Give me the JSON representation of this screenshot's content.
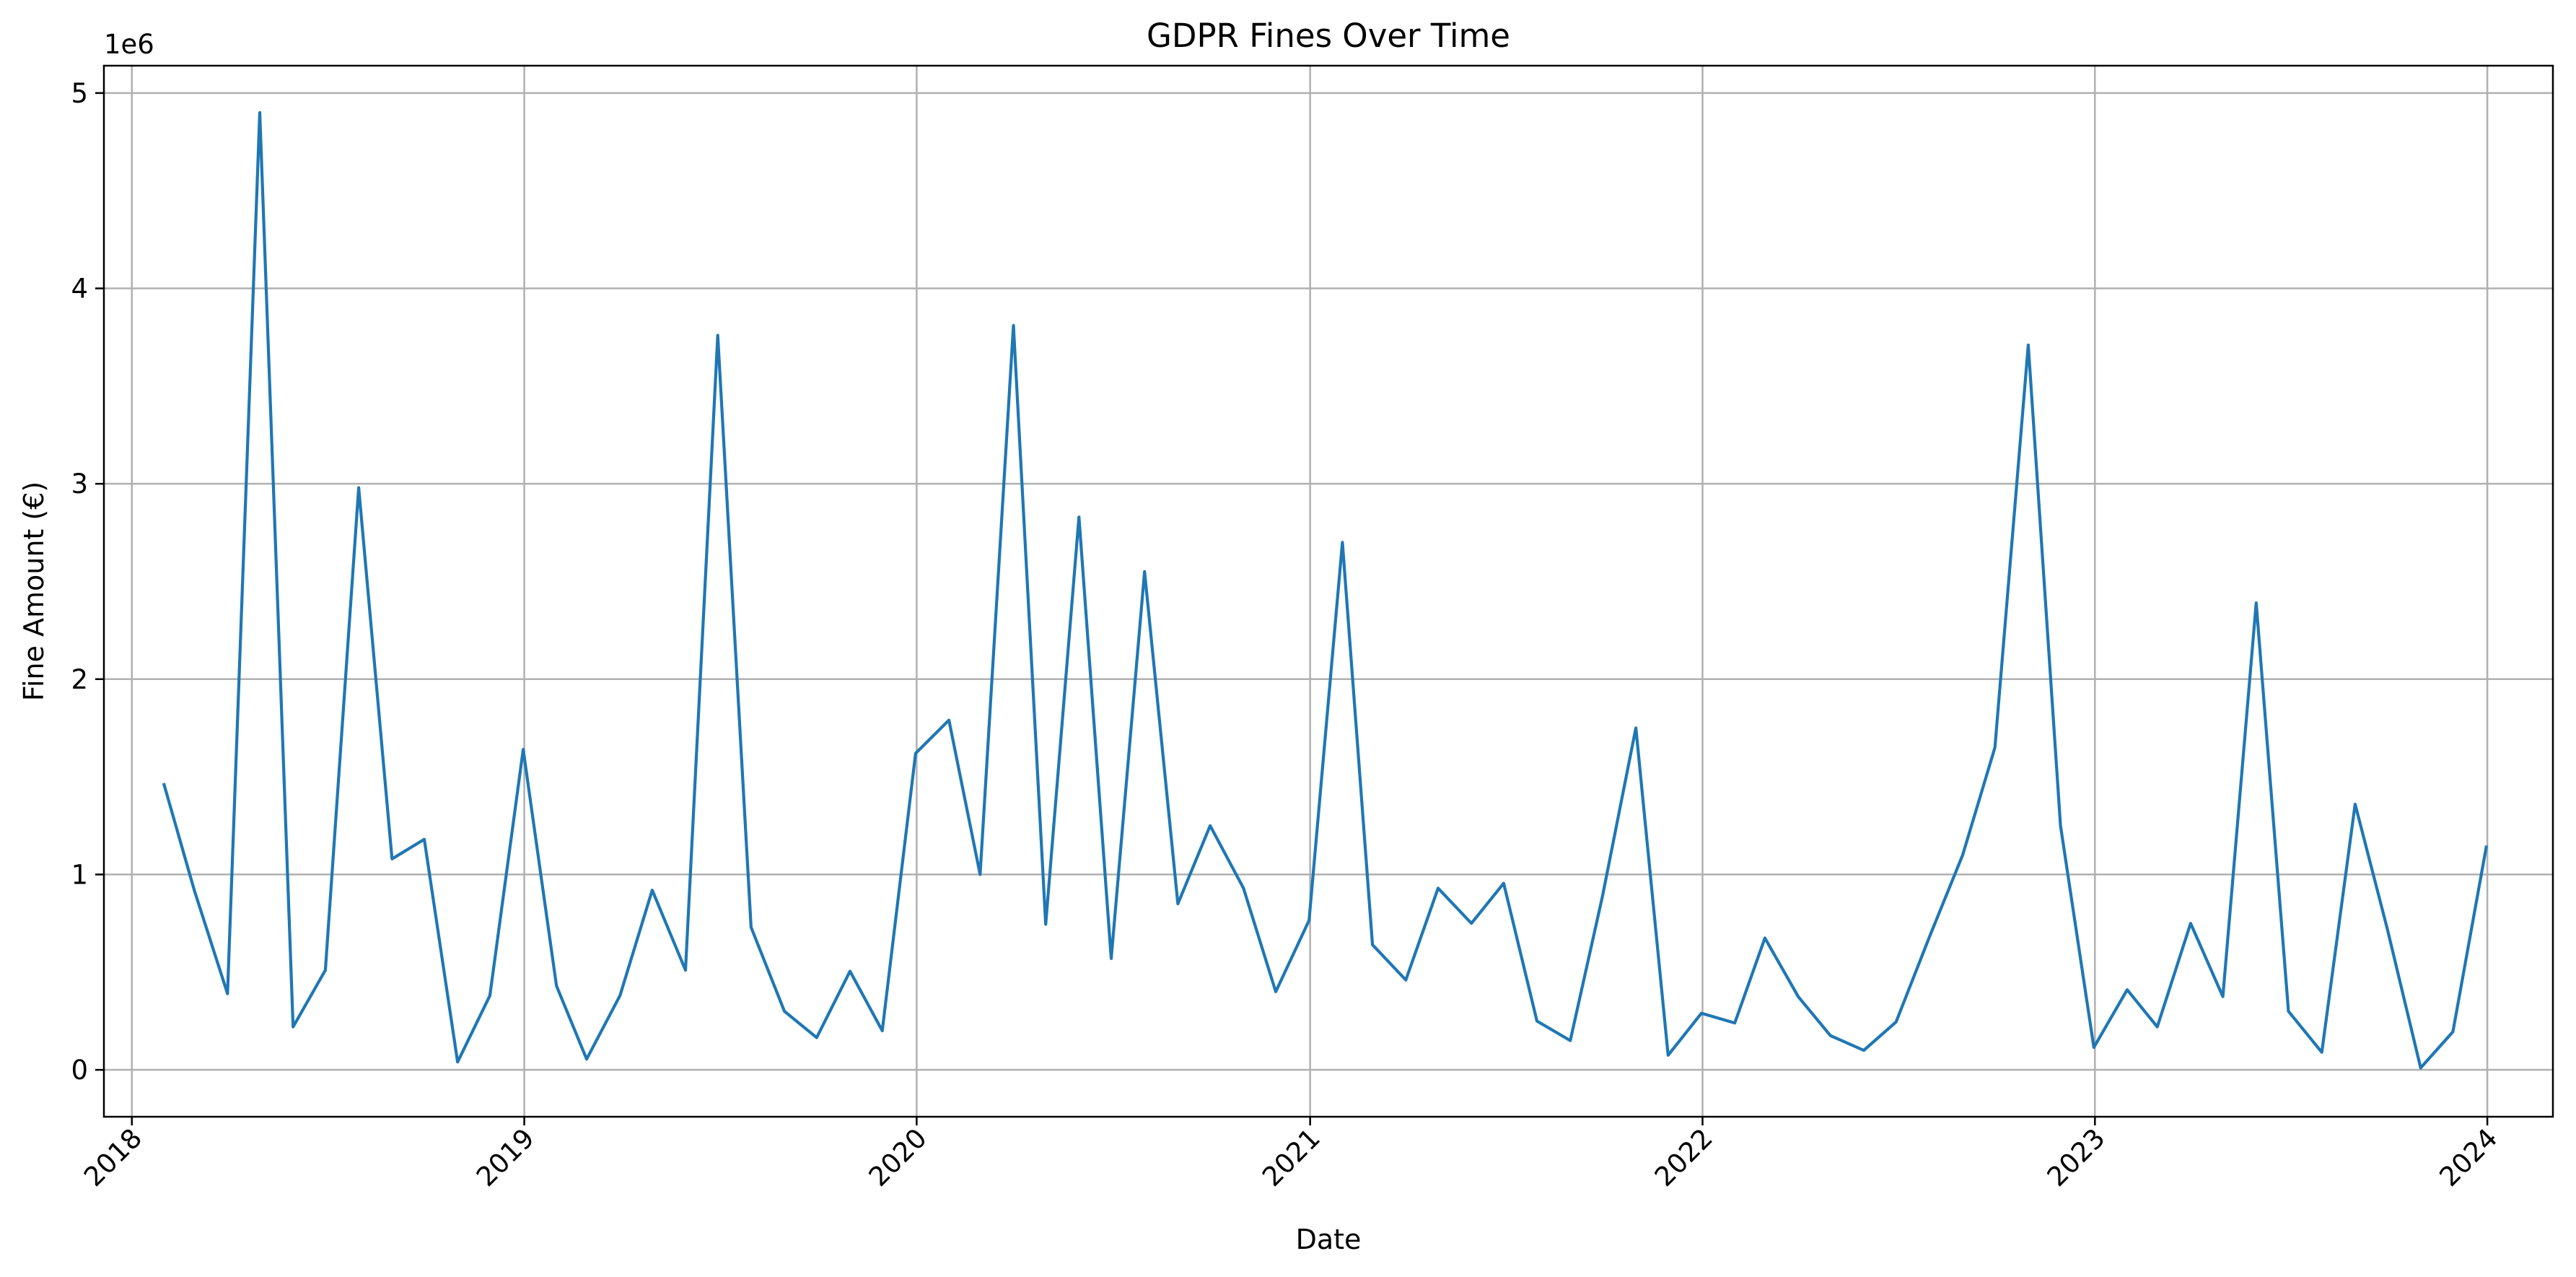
{
  "chart_data": {
    "type": "line",
    "title": "GDPR Fines Over Time",
    "xlabel": "Date",
    "ylabel": "Fine Amount (€)",
    "y_offset_label": "1e6",
    "xlim": [
      "2017-12-06",
      "2024-03-02"
    ],
    "ylim": [
      -240000,
      5140000
    ],
    "grid": true,
    "line_color": "#1f77b4",
    "grid_color": "#b0b0b0",
    "x_ticks": [
      {
        "date": "2018-01-01",
        "label": "2018"
      },
      {
        "date": "2019-01-01",
        "label": "2019"
      },
      {
        "date": "2020-01-01",
        "label": "2020"
      },
      {
        "date": "2021-01-01",
        "label": "2021"
      },
      {
        "date": "2022-01-01",
        "label": "2022"
      },
      {
        "date": "2023-01-01",
        "label": "2023"
      },
      {
        "date": "2024-01-01",
        "label": "2024"
      }
    ],
    "y_ticks": [
      {
        "value": 0,
        "label": "0"
      },
      {
        "value": 1000000,
        "label": "1"
      },
      {
        "value": 2000000,
        "label": "2"
      },
      {
        "value": 3000000,
        "label": "3"
      },
      {
        "value": 4000000,
        "label": "4"
      },
      {
        "value": 5000000,
        "label": "5"
      }
    ],
    "series": [
      {
        "x": [
          "2018-01-31",
          "2018-02-28",
          "2018-03-31",
          "2018-04-30",
          "2018-05-31",
          "2018-06-30",
          "2018-07-31",
          "2018-08-31",
          "2018-09-30",
          "2018-10-31",
          "2018-11-30",
          "2018-12-31",
          "2019-01-31",
          "2019-02-28",
          "2019-03-31",
          "2019-04-30",
          "2019-05-31",
          "2019-06-30",
          "2019-07-31",
          "2019-08-31",
          "2019-09-30",
          "2019-10-31",
          "2019-11-30",
          "2019-12-31",
          "2020-01-31",
          "2020-02-29",
          "2020-03-31",
          "2020-04-30",
          "2020-05-31",
          "2020-06-30",
          "2020-07-31",
          "2020-08-31",
          "2020-09-30",
          "2020-10-31",
          "2020-11-30",
          "2020-12-31",
          "2021-01-31",
          "2021-02-28",
          "2021-03-31",
          "2021-04-30",
          "2021-05-31",
          "2021-06-30",
          "2021-07-31",
          "2021-08-31",
          "2021-09-30",
          "2021-10-31",
          "2021-11-30",
          "2021-12-31",
          "2022-01-31",
          "2022-02-28",
          "2022-03-31",
          "2022-04-30",
          "2022-05-31",
          "2022-06-30",
          "2022-07-31",
          "2022-08-31",
          "2022-09-30",
          "2022-10-31",
          "2022-11-30",
          "2022-12-31",
          "2023-01-31",
          "2023-02-28",
          "2023-03-31",
          "2023-04-30",
          "2023-05-31",
          "2023-06-30",
          "2023-07-31",
          "2023-08-31",
          "2023-09-30",
          "2023-10-31",
          "2023-11-30",
          "2023-12-31"
        ],
        "y": [
          1460000,
          920000,
          390000,
          4900000,
          220000,
          510000,
          2980000,
          1080000,
          1180000,
          40000,
          380000,
          1640000,
          430000,
          55000,
          380000,
          920000,
          510000,
          3760000,
          730000,
          300000,
          165000,
          505000,
          200000,
          1620000,
          1790000,
          1000000,
          3810000,
          745000,
          2830000,
          570000,
          2550000,
          850000,
          1250000,
          930000,
          400000,
          765000,
          2700000,
          640000,
          460000,
          930000,
          750000,
          955000,
          250000,
          150000,
          890000,
          1750000,
          75000,
          290000,
          240000,
          675000,
          375000,
          175000,
          100000,
          245000,
          680000,
          1100000,
          1650000,
          3710000,
          1250000,
          115000,
          410000,
          220000,
          750000,
          375000,
          2390000,
          300000,
          90000,
          1360000,
          720000,
          10000,
          195000,
          1140000
        ]
      }
    ]
  }
}
